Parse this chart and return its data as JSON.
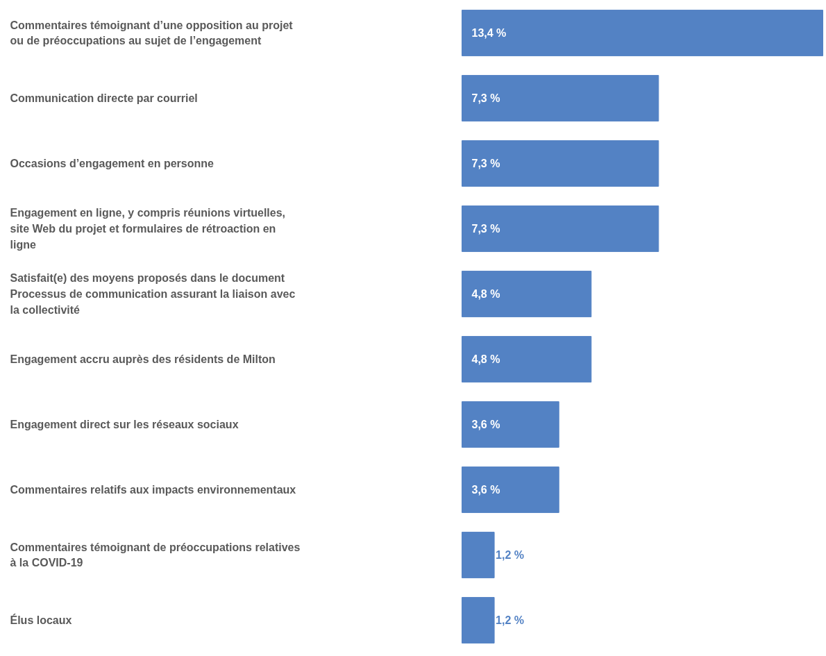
{
  "chart_data": {
    "type": "bar",
    "orientation": "horizontal",
    "categories": [
      "Commentaires témoignant d’une opposition au projet ou de préoccupations au sujet de l’engagement",
      "Communication directe par courriel",
      "Occasions d’engagement en personne",
      "Engagement en ligne, y compris réunions virtuelles, site Web du projet et formulaires de rétroaction en ligne",
      "Satisfait(e) des moyens proposés dans le document Processus de communication assurant la liaison avec la collectivité",
      "Engagement accru auprès des résidents de Milton",
      "Engagement direct sur les réseaux sociaux",
      "Commentaires relatifs aux impacts environnementaux",
      "Commentaires témoignant de préoccupations relatives à la COVID-19",
      "Élus locaux"
    ],
    "values": [
      13.4,
      7.3,
      7.3,
      7.3,
      4.8,
      4.8,
      3.6,
      3.6,
      1.2,
      1.2
    ],
    "value_labels": [
      "13,4 %",
      "7,3 %",
      "7,3 %",
      "7,3 %",
      "4,8 %",
      "4,8 %",
      "3,6 %",
      "3,6 %",
      "1,2 %",
      "1,2 %"
    ],
    "color": "#5382c4"
  }
}
